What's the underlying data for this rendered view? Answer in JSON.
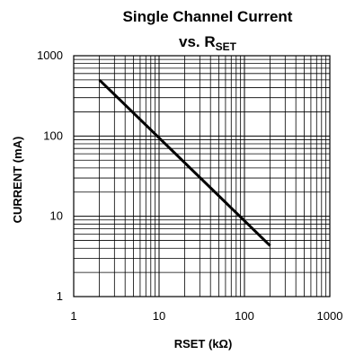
{
  "chart_data": {
    "type": "line",
    "title_line1": "Single Channel Current",
    "title_line2_prefix": "vs. R",
    "title_line2_subscript": "SET",
    "xlabel": "RSET (kΩ)",
    "ylabel": "CURRENT (mA)",
    "x_scale": "log",
    "y_scale": "log",
    "xlim": [
      1,
      1000
    ],
    "ylim": [
      1,
      1000
    ],
    "x_ticks": [
      1,
      10,
      100,
      1000
    ],
    "x_tick_labels": [
      "1",
      "10",
      "100",
      "1000"
    ],
    "y_ticks": [
      1,
      10,
      100,
      1000
    ],
    "y_tick_labels": [
      "1",
      "10",
      "100",
      "1000"
    ],
    "grid": true,
    "series": [
      {
        "x": [
          2,
          200
        ],
        "y": [
          500,
          4.3
        ],
        "color": "#000000"
      }
    ]
  }
}
